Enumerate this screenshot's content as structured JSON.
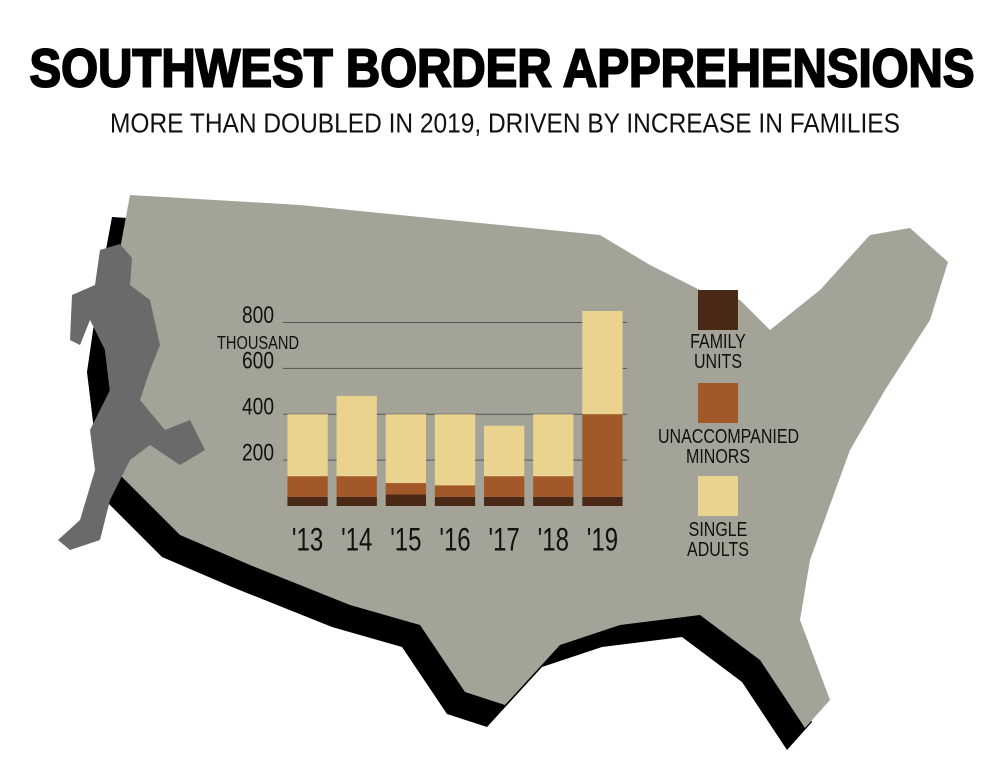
{
  "chart_data": {
    "type": "bar",
    "stacked": true,
    "title": "SOUTHWEST BORDER APPREHENSIONS",
    "subtitle": "MORE THAN DOUBLED IN 2019, DRIVEN BY INCREASE IN FAMILIES",
    "y_unit_label": "THOUSAND",
    "categories": [
      "'13",
      "'14",
      "'15",
      "'16",
      "'17",
      "'18",
      "'19"
    ],
    "series": [
      {
        "name": "FAMILY UNITS",
        "color": "#4a2a17",
        "values": [
          40,
          40,
          50,
          40,
          40,
          40,
          40
        ]
      },
      {
        "name": "UNACCOMPANIED MINORS",
        "color": "#a3582a",
        "values": [
          90,
          90,
          50,
          50,
          90,
          90,
          360
        ]
      },
      {
        "name": "SINGLE ADULTS",
        "color": "#e9d38f",
        "values": [
          270,
          350,
          300,
          310,
          220,
          270,
          450
        ]
      }
    ],
    "ylim": [
      0,
      850
    ],
    "yticks": [
      200,
      400,
      600,
      800
    ],
    "grid": true
  }
}
